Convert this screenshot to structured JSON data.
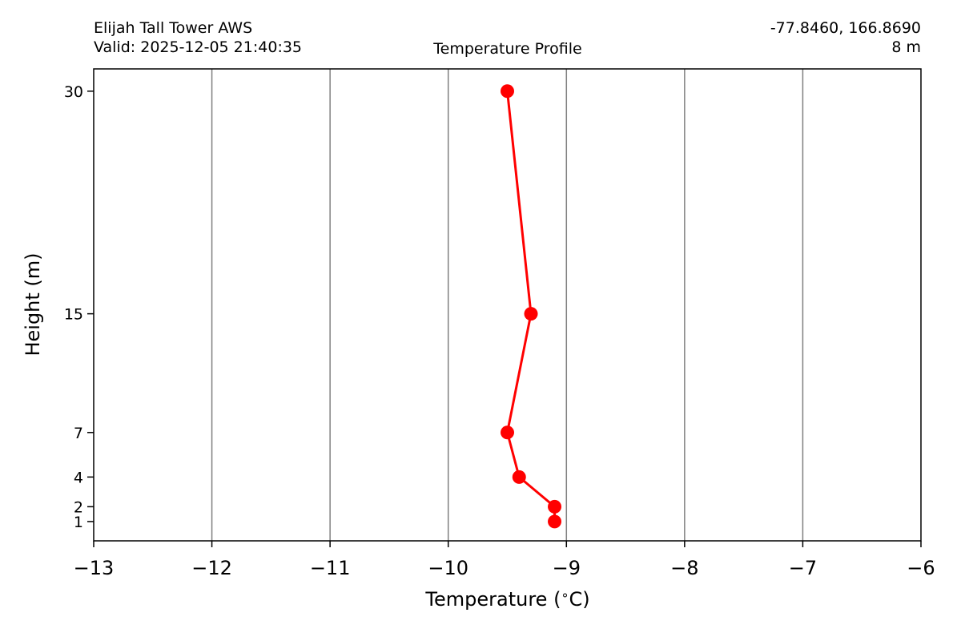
{
  "header": {
    "station": "Elijah Tall Tower AWS",
    "valid": "Valid: 2025-12-05 21:40:35",
    "coords": "-77.8460, 166.8690",
    "elevation": "8 m"
  },
  "chart_data": {
    "type": "line",
    "title": "Temperature Profile",
    "xlabel": "Temperature (°C)",
    "ylabel": "Height (m)",
    "xlim": [
      -13,
      -6
    ],
    "ylim": [
      -0.3,
      31.5
    ],
    "xticks": [
      -13,
      -12,
      -11,
      -10,
      -9,
      -8,
      -7,
      -6
    ],
    "xtick_labels": [
      "−13",
      "−12",
      "−11",
      "−10",
      "−9",
      "−8",
      "−7",
      "−6"
    ],
    "yticks": [
      1,
      2,
      4,
      7,
      15,
      30
    ],
    "ytick_labels": [
      "1",
      "2",
      "4",
      "7",
      "15",
      "30"
    ],
    "grid": "vertical",
    "series": [
      {
        "color": "#ff0000",
        "points": [
          {
            "x": -9.1,
            "y": 1
          },
          {
            "x": -9.1,
            "y": 2
          },
          {
            "x": -9.4,
            "y": 4
          },
          {
            "x": -9.5,
            "y": 7
          },
          {
            "x": -9.3,
            "y": 15
          },
          {
            "x": -9.5,
            "y": 30
          }
        ]
      }
    ],
    "gridline_color": "#808080"
  }
}
